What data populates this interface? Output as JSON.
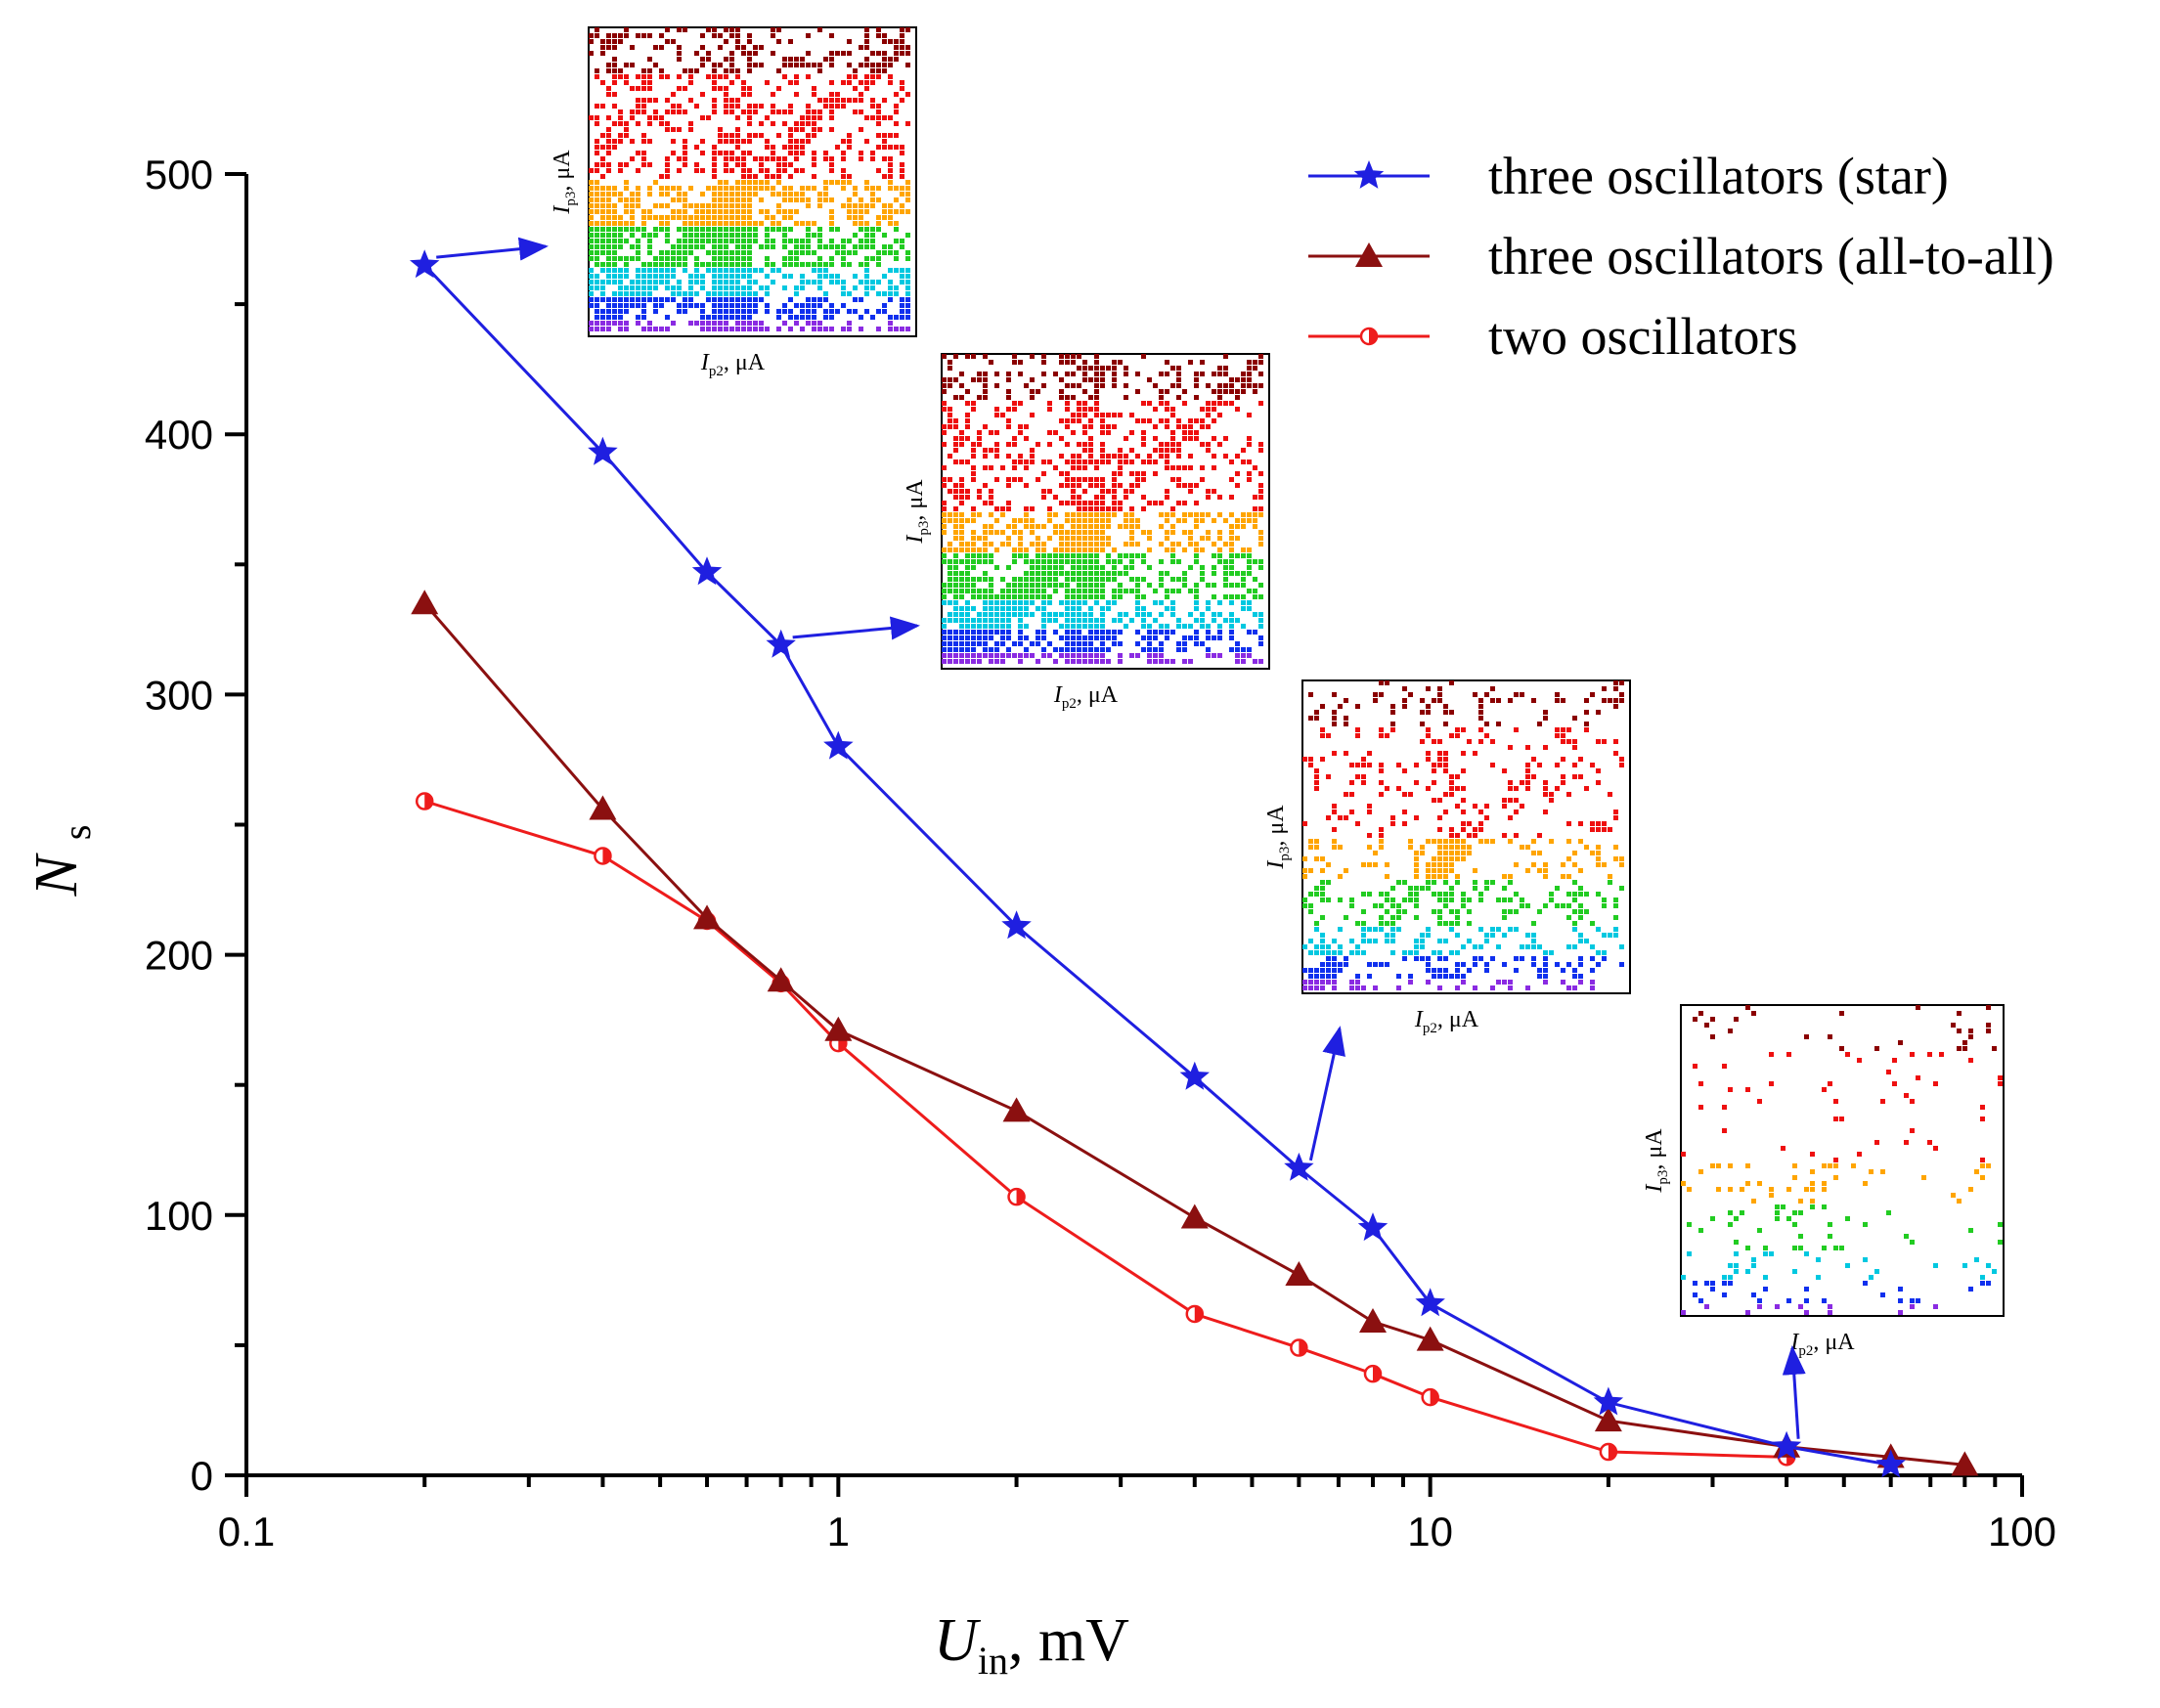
{
  "chart_data": {
    "type": "line",
    "xscale": "log",
    "xlim": [
      0.1,
      100
    ],
    "ylim": [
      0,
      500
    ],
    "x_ticks": [
      "0.1",
      "1",
      "10",
      "100"
    ],
    "y_ticks": [
      "0",
      "100",
      "200",
      "300",
      "400",
      "500"
    ],
    "xlabel": {
      "main": "U",
      "sub": "in",
      "unit": ", mV"
    },
    "ylabel": {
      "main": "N",
      "sub": "s"
    },
    "legend_position": "top-right",
    "series": [
      {
        "name": "three oscillators (star)",
        "color": "#1f1fe0",
        "marker": "star",
        "x": [
          0.2,
          0.4,
          0.6,
          0.8,
          1,
          2,
          4,
          6,
          8,
          10,
          20,
          40,
          60
        ],
        "y": [
          465,
          393,
          347,
          319,
          280,
          211,
          153,
          118,
          95,
          66,
          28,
          11,
          4
        ]
      },
      {
        "name": "three oscillators (all-to-all)",
        "color": "#8b1010",
        "marker": "triangle",
        "x": [
          0.2,
          0.4,
          0.6,
          0.8,
          1,
          2,
          4,
          6,
          8,
          10,
          20,
          40,
          60,
          80
        ],
        "y": [
          335,
          256,
          214,
          190,
          171,
          140,
          99,
          77,
          59,
          52,
          21,
          11,
          7,
          4
        ]
      },
      {
        "name": "two oscillators",
        "color": "#ee1c1c",
        "marker": "half-circle",
        "x": [
          0.2,
          0.4,
          0.6,
          0.8,
          1,
          2,
          4,
          6,
          8,
          10,
          20,
          40
        ],
        "y": [
          259,
          238,
          213,
          189,
          166,
          107,
          62,
          49,
          39,
          30,
          9,
          7
        ]
      }
    ],
    "insets": [
      {
        "name": "inset-1",
        "xlabel": {
          "main": "I",
          "sub": "p2",
          "unit": ", μA"
        },
        "ylabel": {
          "main": "I",
          "sub": "p3",
          "unit": ", μA"
        }
      },
      {
        "name": "inset-2",
        "xlabel": {
          "main": "I",
          "sub": "p2",
          "unit": ", μA"
        },
        "ylabel": {
          "main": "I",
          "sub": "p3",
          "unit": ", μA"
        }
      },
      {
        "name": "inset-3",
        "xlabel": {
          "main": "I",
          "sub": "p2",
          "unit": ", μA"
        },
        "ylabel": {
          "main": "I",
          "sub": "p3",
          "unit": ", μA"
        }
      },
      {
        "name": "inset-4",
        "xlabel": {
          "main": "I",
          "sub": "p2",
          "unit": ", μA"
        },
        "ylabel": {
          "main": "I",
          "sub": "p3",
          "unit": ", μA"
        }
      }
    ]
  }
}
